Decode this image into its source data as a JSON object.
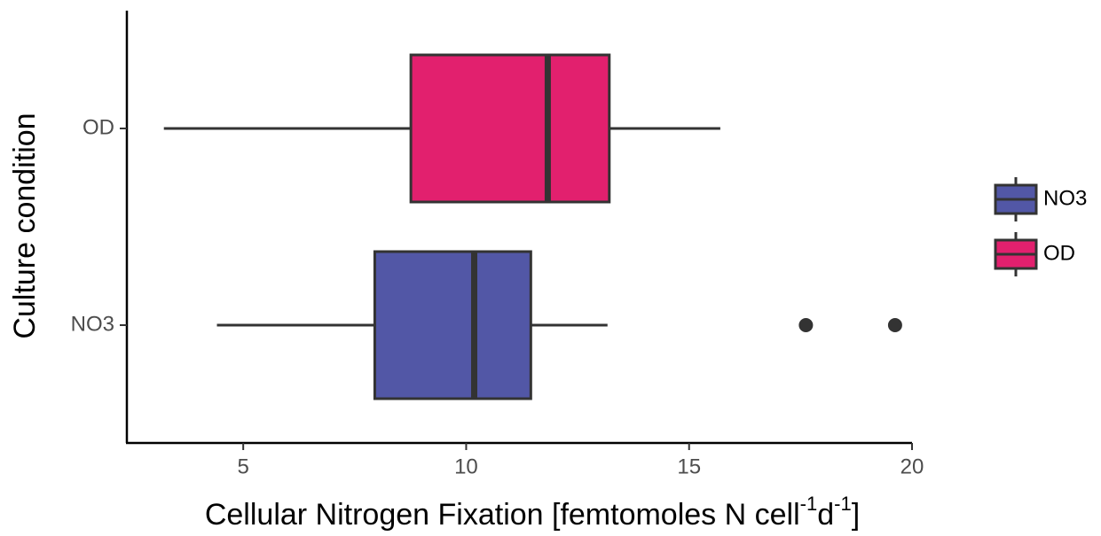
{
  "chart_data": {
    "type": "boxplot",
    "orientation": "horizontal",
    "y_label": "Culture condition",
    "x_label": [
      "Cellular Nitrogen Fixation [femtomoles N cell",
      "-1",
      "d",
      "-1",
      "]"
    ],
    "categories": [
      "NO3",
      "OD"
    ],
    "boxes": [
      {
        "name": "NO3",
        "color": "#5257a6",
        "min": 4.41,
        "q1": 7.95,
        "median": 10.18,
        "q3": 11.45,
        "max": 13.17,
        "outliers": [
          17.62,
          19.62
        ]
      },
      {
        "name": "OD",
        "color": "#e2206e",
        "min": 3.22,
        "q1": 8.76,
        "median": 11.83,
        "q3": 13.21,
        "max": 15.7,
        "outliers": []
      }
    ],
    "xlim": [
      2.39,
      20.0
    ],
    "xticks": [
      5,
      10,
      15,
      20
    ],
    "legend": "right"
  }
}
